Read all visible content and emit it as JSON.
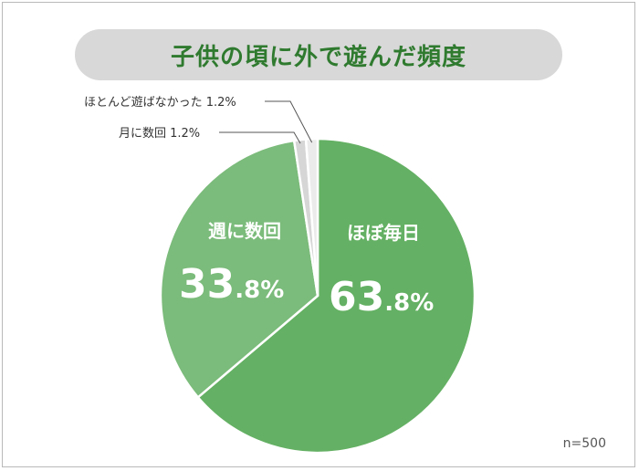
{
  "chart_data": {
    "type": "pie",
    "title": "子供の頃に外で遊んだ頻度",
    "note": "n=500",
    "slices": [
      {
        "label": "ほぼ毎日",
        "value": 63.8,
        "display_num": "63",
        "display_dec": ".8%",
        "color": "#64b064",
        "text_color": "#ffffff"
      },
      {
        "label": "週に数回",
        "value": 33.8,
        "display_num": "33",
        "display_dec": ".8%",
        "color": "#7bbb7b",
        "text_color": "#ffffff"
      },
      {
        "label": "月に数回",
        "value": 1.2,
        "display": "月に数回 1.2%",
        "color": "#d6d6d6",
        "text_color": "#333333"
      },
      {
        "label": "ほとんど遊ばなかった",
        "value": 1.2,
        "display": "ほとんど遊ばなかった 1.2%",
        "color": "#ebebeb",
        "text_color": "#333333"
      }
    ]
  }
}
